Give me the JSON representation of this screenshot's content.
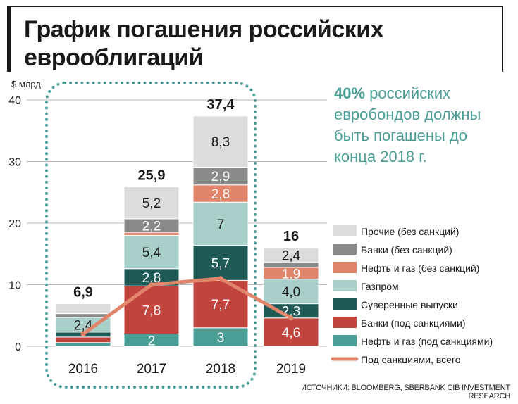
{
  "title": "График погашения российских еврооблигаций",
  "note": {
    "highlight": "40%",
    "text": "российских евробондов должны быть погашены до конца 2018 г."
  },
  "source": "ИСТОЧНИКИ: BLOOMBERG, SBERBANK CIB INVESTMENT RESEARCH",
  "colors": {
    "prochie": "#dcdcdc",
    "banki_bez": "#8a8a8a",
    "neft_bez": "#e0846a",
    "gazprom": "#a9cfcb",
    "suveren": "#1f5a57",
    "banki_pod": "#c2443f",
    "neft_pod": "#4a9e96",
    "line": "#e0846a",
    "dotted_frame": "#4a9e96",
    "note": "#4a9e96"
  },
  "chart_data": {
    "type": "bar",
    "stacked": true,
    "ylabel": "$ млрд",
    "ylim": [
      0,
      40
    ],
    "yticks": [
      0,
      10,
      20,
      30,
      40
    ],
    "grid": true,
    "legend_position": "right",
    "categories": [
      "2016",
      "2017",
      "2018",
      "2019"
    ],
    "totals": [
      "6,9",
      "25,9",
      "37,4",
      "16"
    ],
    "series": [
      {
        "name": "Нефть и газ (под санкциями)",
        "color_key": "neft_pod",
        "values": [
          0.6,
          2,
          3,
          0
        ],
        "labels": [
          "",
          "2",
          "3",
          ""
        ]
      },
      {
        "name": "Банки (под санкциями)",
        "color_key": "banki_pod",
        "values": [
          0.9,
          7.8,
          7.7,
          4.6
        ],
        "labels": [
          "",
          "7,8",
          "7,7",
          "4,6"
        ]
      },
      {
        "name": "Суверенные выпуски",
        "color_key": "suveren",
        "values": [
          0.8,
          2.8,
          5.7,
          2.3
        ],
        "labels": [
          "",
          "2,8",
          "5,7",
          "2,3"
        ]
      },
      {
        "name": "Газпром",
        "color_key": "gazprom",
        "values": [
          2.4,
          5.4,
          7,
          4.0
        ],
        "labels": [
          "2,4",
          "5,4",
          "7",
          "4,0"
        ]
      },
      {
        "name": "Нефть и газ (без санкций)",
        "color_key": "neft_bez",
        "values": [
          0,
          0.5,
          2.8,
          1.9
        ],
        "labels": [
          "",
          "",
          "2,8",
          "1,9"
        ]
      },
      {
        "name": "Банки (без санкций)",
        "color_key": "banki_bez",
        "values": [
          0.6,
          2.2,
          2.9,
          0.8
        ],
        "labels": [
          "",
          "2,2",
          "2,9",
          ""
        ]
      },
      {
        "name": "Прочие (без санкций)",
        "color_key": "prochie",
        "values": [
          1.6,
          5.2,
          8.3,
          2.4
        ],
        "labels": [
          "",
          "5,2",
          "8,3",
          "2,4"
        ]
      }
    ],
    "line": {
      "name": "Под санкциями, всего",
      "color_key": "line",
      "values": [
        2,
        10,
        11,
        4.6
      ]
    },
    "legend_order": [
      "Прочие (без санкций)",
      "Банки (без санкций)",
      "Нефть и газ (без санкций)",
      "Газпром",
      "Суверенные выпуски",
      "Банки (под санкциями)",
      "Нефть и газ (под санкциями)",
      "Под санкциями, всего"
    ]
  }
}
